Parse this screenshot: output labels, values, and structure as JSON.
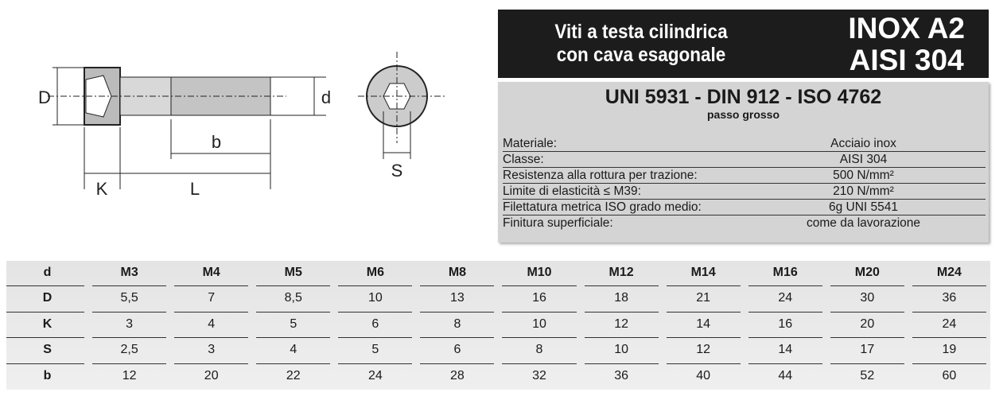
{
  "drawing": {
    "labels": {
      "D": "D",
      "d": "d",
      "b": "b",
      "K": "K",
      "L": "L",
      "S": "S"
    }
  },
  "header": {
    "title_line1": "Viti a testa cilindrica",
    "title_line2": "con cava esagonale",
    "material_line1": "INOX A2",
    "material_line2": "AISI 304"
  },
  "specs": {
    "standards": "UNI 5931 - DIN 912 - ISO 4762",
    "pitch": "passo grosso",
    "properties": [
      {
        "label": "Materiale:",
        "value": "Acciaio inox"
      },
      {
        "label": "Classe:",
        "value": "AISI 304"
      },
      {
        "label": "Resistenza alla rottura per trazione:",
        "value": "500 N/mm²"
      },
      {
        "label": "Limite di elasticità ≤ M39:",
        "value": "210 N/mm²"
      },
      {
        "label": "Filettatura metrica ISO grado medio:",
        "value": "6g UNI 5541"
      },
      {
        "label": "Finitura superficiale:",
        "value": "come da lavorazione"
      }
    ]
  },
  "table": {
    "rows": [
      [
        "d",
        "M3",
        "M4",
        "M5",
        "M6",
        "M8",
        "M10",
        "M12",
        "M14",
        "M16",
        "M20",
        "M24"
      ],
      [
        "D",
        "5,5",
        "7",
        "8,5",
        "10",
        "13",
        "16",
        "18",
        "21",
        "24",
        "30",
        "36"
      ],
      [
        "K",
        "3",
        "4",
        "5",
        "6",
        "8",
        "10",
        "12",
        "14",
        "16",
        "20",
        "24"
      ],
      [
        "S",
        "2,5",
        "3",
        "4",
        "5",
        "6",
        "8",
        "10",
        "12",
        "14",
        "17",
        "19"
      ],
      [
        "b",
        "12",
        "20",
        "22",
        "24",
        "28",
        "32",
        "36",
        "40",
        "44",
        "52",
        "60"
      ]
    ]
  }
}
